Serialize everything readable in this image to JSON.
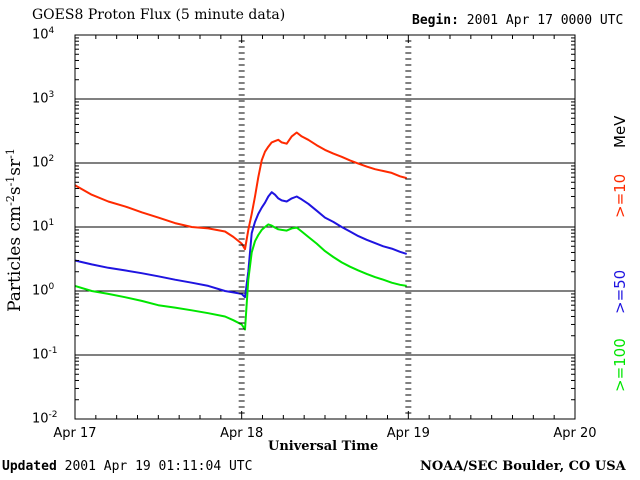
{
  "title": "GOES8 Proton Flux (5 minute data)",
  "begin_label": "Begin:",
  "begin_value": "2001 Apr 17 0000 UTC",
  "updated_label": "Updated",
  "updated_value": "2001 Apr 19 01:11:04 UTC",
  "credit": "NOAA/SEC Boulder, CO USA",
  "colors": {
    "ge10": "#ff2a00",
    "ge50": "#1f14e0",
    "ge100": "#00e600",
    "axis": "#000000"
  },
  "chart_data": {
    "type": "line",
    "title": "GOES8 Proton Flux (5 minute data)",
    "xlabel": "Universal Time",
    "ylabel": "Particles cm-2s-1sr-1",
    "y_scale": "log",
    "ylim_exponents": [
      -2,
      4
    ],
    "y_ticks": [
      {
        "base": "10",
        "exp": "4"
      },
      {
        "base": "10",
        "exp": "3"
      },
      {
        "base": "10",
        "exp": "2"
      },
      {
        "base": "10",
        "exp": "1"
      },
      {
        "base": "10",
        "exp": "0"
      },
      {
        "base": "10",
        "exp": "-1"
      },
      {
        "base": "10",
        "exp": "-2"
      }
    ],
    "x_ticks": [
      "Apr 17",
      "Apr 18",
      "Apr 19",
      "Apr 20"
    ],
    "xlim_days": [
      0,
      3
    ],
    "grid": "horizontal",
    "legend_unit": "MeV",
    "series": [
      {
        "name": ">=10",
        "color": "#ff2a00",
        "points": [
          [
            0.0,
            45
          ],
          [
            0.1,
            32
          ],
          [
            0.2,
            25
          ],
          [
            0.3,
            21
          ],
          [
            0.4,
            17
          ],
          [
            0.5,
            14
          ],
          [
            0.6,
            11.5
          ],
          [
            0.7,
            10
          ],
          [
            0.8,
            9.5
          ],
          [
            0.9,
            8.5
          ],
          [
            0.95,
            7
          ],
          [
            1.0,
            5.5
          ],
          [
            1.02,
            4.5
          ],
          [
            1.04,
            9
          ],
          [
            1.06,
            16
          ],
          [
            1.08,
            30
          ],
          [
            1.1,
            60
          ],
          [
            1.12,
            110
          ],
          [
            1.14,
            150
          ],
          [
            1.16,
            180
          ],
          [
            1.18,
            210
          ],
          [
            1.2,
            220
          ],
          [
            1.22,
            230
          ],
          [
            1.24,
            210
          ],
          [
            1.27,
            200
          ],
          [
            1.3,
            260
          ],
          [
            1.33,
            300
          ],
          [
            1.36,
            260
          ],
          [
            1.4,
            230
          ],
          [
            1.45,
            190
          ],
          [
            1.5,
            160
          ],
          [
            1.55,
            140
          ],
          [
            1.6,
            125
          ],
          [
            1.65,
            110
          ],
          [
            1.7,
            98
          ],
          [
            1.75,
            88
          ],
          [
            1.8,
            80
          ],
          [
            1.85,
            75
          ],
          [
            1.9,
            70
          ],
          [
            1.95,
            62
          ],
          [
            1.99,
            58
          ]
        ]
      },
      {
        "name": ">=50",
        "color": "#1f14e0",
        "points": [
          [
            0.0,
            3.0
          ],
          [
            0.1,
            2.6
          ],
          [
            0.2,
            2.3
          ],
          [
            0.3,
            2.1
          ],
          [
            0.4,
            1.9
          ],
          [
            0.5,
            1.7
          ],
          [
            0.6,
            1.5
          ],
          [
            0.7,
            1.35
          ],
          [
            0.8,
            1.2
          ],
          [
            0.9,
            1.0
          ],
          [
            0.95,
            0.95
          ],
          [
            1.0,
            0.9
          ],
          [
            1.02,
            0.8
          ],
          [
            1.04,
            2.0
          ],
          [
            1.06,
            8
          ],
          [
            1.08,
            12
          ],
          [
            1.1,
            16
          ],
          [
            1.12,
            20
          ],
          [
            1.14,
            24
          ],
          [
            1.16,
            30
          ],
          [
            1.18,
            35
          ],
          [
            1.2,
            32
          ],
          [
            1.22,
            28
          ],
          [
            1.24,
            26
          ],
          [
            1.27,
            25
          ],
          [
            1.3,
            28
          ],
          [
            1.33,
            30
          ],
          [
            1.36,
            27
          ],
          [
            1.4,
            23
          ],
          [
            1.45,
            18
          ],
          [
            1.5,
            14
          ],
          [
            1.55,
            12
          ],
          [
            1.6,
            10
          ],
          [
            1.65,
            8.5
          ],
          [
            1.7,
            7.2
          ],
          [
            1.75,
            6.3
          ],
          [
            1.8,
            5.6
          ],
          [
            1.85,
            5.0
          ],
          [
            1.9,
            4.6
          ],
          [
            1.95,
            4.1
          ],
          [
            1.99,
            3.8
          ]
        ]
      },
      {
        "name": ">=100",
        "color": "#00e600",
        "points": [
          [
            0.0,
            1.2
          ],
          [
            0.1,
            1.0
          ],
          [
            0.2,
            0.9
          ],
          [
            0.3,
            0.8
          ],
          [
            0.4,
            0.7
          ],
          [
            0.5,
            0.6
          ],
          [
            0.6,
            0.55
          ],
          [
            0.7,
            0.5
          ],
          [
            0.8,
            0.45
          ],
          [
            0.9,
            0.4
          ],
          [
            0.95,
            0.35
          ],
          [
            1.0,
            0.3
          ],
          [
            1.02,
            0.25
          ],
          [
            1.04,
            1.5
          ],
          [
            1.06,
            4
          ],
          [
            1.08,
            6
          ],
          [
            1.1,
            7.5
          ],
          [
            1.12,
            9
          ],
          [
            1.14,
            10
          ],
          [
            1.16,
            11
          ],
          [
            1.18,
            10.5
          ],
          [
            1.2,
            9.8
          ],
          [
            1.22,
            9.2
          ],
          [
            1.24,
            9
          ],
          [
            1.27,
            8.8
          ],
          [
            1.3,
            9.5
          ],
          [
            1.33,
            9.8
          ],
          [
            1.36,
            8.5
          ],
          [
            1.4,
            7
          ],
          [
            1.45,
            5.5
          ],
          [
            1.5,
            4.2
          ],
          [
            1.55,
            3.4
          ],
          [
            1.6,
            2.8
          ],
          [
            1.65,
            2.4
          ],
          [
            1.7,
            2.1
          ],
          [
            1.75,
            1.85
          ],
          [
            1.8,
            1.65
          ],
          [
            1.85,
            1.5
          ],
          [
            1.9,
            1.35
          ],
          [
            1.95,
            1.25
          ],
          [
            1.99,
            1.2
          ]
        ]
      }
    ]
  }
}
